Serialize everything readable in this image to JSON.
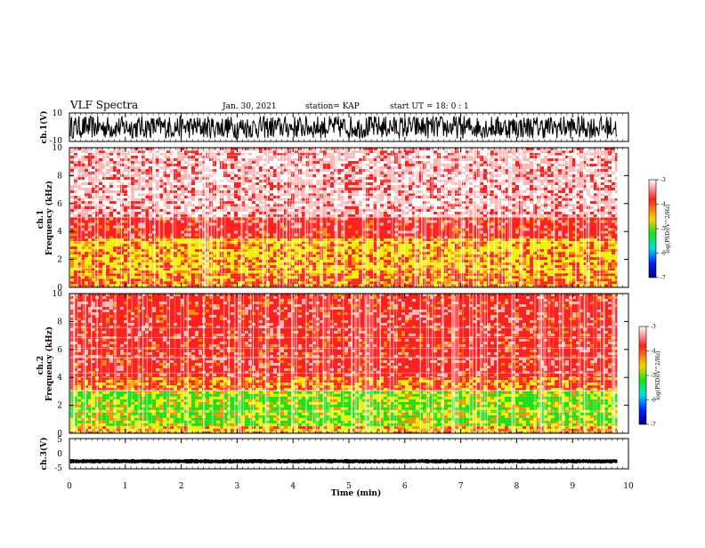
{
  "header": {
    "title": "VLF Spectra",
    "date": "Jan. 30, 2021",
    "station": "station= KAP",
    "start": "start UT =  18: 0  : 1"
  },
  "chart_data": [
    {
      "type": "line",
      "name": "ch1-waveform",
      "ylabel": "ch.1(V)",
      "ylim": [
        -10,
        10
      ],
      "yticks": [
        "10",
        "-10"
      ],
      "x_range": [
        0,
        9.8
      ],
      "amplitude_range": [
        -8,
        8
      ]
    },
    {
      "type": "heatmap",
      "name": "ch1-spectrogram",
      "ylabel": "ch.1 Frequency (kHz)",
      "ylim": [
        0,
        10
      ],
      "yticks": [
        "0",
        "2",
        "4",
        "6",
        "8",
        "10"
      ],
      "x_range": [
        0,
        9.8
      ],
      "bands": [
        {
          "from_khz": 0,
          "to_khz": 1,
          "level": "red / yellow"
        },
        {
          "from_khz": 1,
          "to_khz": 3.5,
          "level": "yellow / red"
        },
        {
          "from_khz": 3.5,
          "to_khz": 5,
          "level": "red"
        },
        {
          "from_khz": 5,
          "to_khz": 10,
          "level": "light red / white"
        }
      ],
      "colorbar": {
        "label": "log(PSD)(V^2/Hz)",
        "ticks": [
          "-3",
          "-4",
          "-5",
          "-6",
          "-7"
        ],
        "range": [
          -7,
          -3
        ]
      }
    },
    {
      "type": "heatmap",
      "name": "ch2-spectrogram",
      "ylabel": "ch.2 Frequency (kHz)",
      "ylim": [
        0,
        10
      ],
      "yticks": [
        "0",
        "2",
        "4",
        "6",
        "8",
        "10"
      ],
      "x_range": [
        0,
        9.8
      ],
      "bands": [
        {
          "from_khz": 0,
          "to_khz": 0.5,
          "level": "yellow / red"
        },
        {
          "from_khz": 0.5,
          "to_khz": 3,
          "level": "green / yellow"
        },
        {
          "from_khz": 3,
          "to_khz": 4,
          "level": "red / yellow"
        },
        {
          "from_khz": 4,
          "to_khz": 10,
          "level": "red"
        }
      ],
      "colorbar": {
        "label": "log(PSD)(V^2/Hz)",
        "ticks": [
          "-3",
          "-4",
          "-5",
          "-6",
          "-7"
        ],
        "range": [
          -7,
          -3
        ]
      }
    },
    {
      "type": "line",
      "name": "ch3-waveform",
      "ylabel": "ch.3(V)",
      "ylim": [
        -5,
        5
      ],
      "yticks": [
        "5",
        "0",
        "-5"
      ],
      "x_range": [
        0,
        9.8
      ],
      "level": -2.5,
      "amplitude_range": [
        -3.2,
        -1.8
      ]
    }
  ],
  "x_axis": {
    "label": "Time (min)",
    "xlim": [
      0,
      10
    ],
    "ticks": [
      "0",
      "1",
      "2",
      "3",
      "4",
      "5",
      "6",
      "7",
      "8",
      "9",
      "10"
    ]
  },
  "colors": {
    "white": "#ffffff",
    "light_red": "#ffb8b8",
    "red": "#ff2020",
    "orange": "#ff8a00",
    "yellow": "#f2f000",
    "green": "#18e018",
    "cyan": "#00e0e0",
    "blue": "#0020ff",
    "dark_blue": "#000080"
  }
}
